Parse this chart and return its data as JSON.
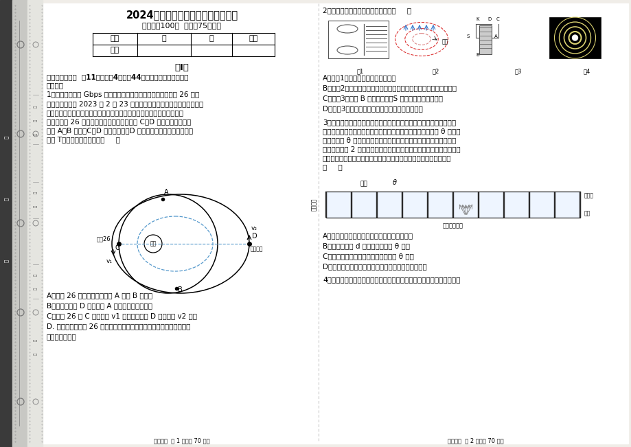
{
  "bg_color": "#ffffff",
  "title": "2024年高考物理考前冲刺试卷及答案",
  "subtitle": "（满分：100分  时间：75分钟）",
  "table_headers": [
    "题号",
    "一",
    "二",
    "总分"
  ],
  "section_title": "第I卷",
  "q1_lines": [
    "1．我国首颗超百 Gbps 容量高通量地球静止轨道通信卫星中星 26 号卫",
    "星，于北京时间 2023 年 2 月 23 日在西昌卫星发射中心成功发射，该卫",
    "星主要用于为固定端及车、船、机载终端提供高速宽带接入服务。如图，",
    "某时刻中星 26 与椭圆轨道侦察卫星恰好位于 C、D 两点，两星轨道相",
    "交于 A、B 两点，C、D 连线过地心，D 点为远地点，两卫星运行周期",
    "都为 T。下列说法正确的是（     ）"
  ],
  "q1_opts": [
    "A．中星 26 与侦察卫星可能在 A 点或 B 点相遇",
    "B．侦查卫星从 D 点运动到 A 点过程中机械能增大",
    "C．中星 26 在 C 点线速度 v1 与侦察卫星在 D 点线速度 v2 相等",
    "D. 相等时间内中星 26 与地球的连线扫过的面积大于侦察卫星与地球的",
    "连线扫过的面积"
  ],
  "footer_left": "物理试题  第 1 页（共 70 页）",
  "q2_header": "2．下列有关四幅图像说法正确的是（     ）",
  "q2_opts": [
    "A．图（1）中线圈中的磁场能在增加",
    "B．图（2）中变化的磁场周围存在电场，与周围有没有闭合电路无关",
    "C．图（3）中若 B 线圈不闭合，S 断开时延时效果还存在",
    "D．图（3）中电子的衍射实验证明了电子的粒子性"
  ],
  "q3_lines": [
    "3．如图所示是某款手机防窥屏的原理图，在透明介质中有相互平行排",
    "列的吸光屏障，屏障垂直于屏幕，可实现对像素单元可视角度 θ 的控制",
    "（可视角度 θ 定义为某像素单元发出的光在图示平面内折射到空气后",
    "最大折射角的 2 倍）。发光像素单元紧贴防窥屏的下表面，可视为点光",
    "源，位于相邻两屏障的正中间。不考虑光的衍射。下列说法正确的是",
    "（     ）"
  ],
  "q3_opts": [
    "A．防窥屏实现防窥效果主要是运用了光的干涉",
    "B．屏障的高度 d 越大，可视角度 θ 越大",
    "C．透明介质的折射率越大，可视角度 θ 越大",
    "D．从上往下观察手机屏幕，看到的图像比实际位置低"
  ],
  "q4_start": "4．地铁靠站时列车车体和屏蔽门之间安装有光电传感器。如图甲所示，",
  "footer_right": "物理试题  第 2 页（共 70 页）",
  "sidebar_dark": "#3a3a3a",
  "sidebar_mid": "#c8c8c4",
  "sidebar_light": "#e8e8e4"
}
